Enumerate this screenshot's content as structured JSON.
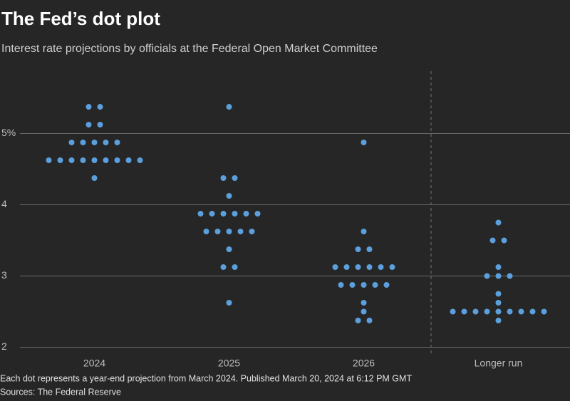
{
  "chart_data": {
    "type": "dot",
    "title": "The Fed’s dot plot",
    "subtitle": "Interest rate projections by officials at the Federal Open Market Committee",
    "note": "Each dot represents a year-end projection from March 2024. Published March 20, 2024 at 6:12 PM GMT",
    "source": "Sources: The Federal Reserve",
    "categories": [
      "2024",
      "2025",
      "2026",
      "Longer run"
    ],
    "values": [
      [
        5.375,
        5.375,
        5.125,
        5.125,
        4.875,
        4.875,
        4.875,
        4.875,
        4.875,
        4.625,
        4.625,
        4.625,
        4.625,
        4.625,
        4.625,
        4.625,
        4.625,
        4.625,
        4.375
      ],
      [
        5.375,
        4.375,
        4.375,
        4.125,
        3.875,
        3.875,
        3.875,
        3.875,
        3.875,
        3.875,
        3.625,
        3.625,
        3.625,
        3.625,
        3.625,
        3.375,
        3.125,
        3.125,
        2.625
      ],
      [
        4.875,
        3.625,
        3.375,
        3.375,
        3.125,
        3.125,
        3.125,
        3.125,
        3.125,
        3.125,
        2.875,
        2.875,
        2.875,
        2.875,
        2.875,
        2.625,
        2.5,
        2.375,
        2.375
      ],
      [
        3.75,
        3.5,
        3.5,
        3.125,
        3.0,
        3.0,
        3.0,
        2.75,
        2.625,
        2.5,
        2.5,
        2.5,
        2.5,
        2.5,
        2.5,
        2.5,
        2.5,
        2.5,
        2.375
      ]
    ],
    "color": "#5b9fdc",
    "ylim": [
      1.875,
      5.875
    ],
    "yticks": [
      2,
      3,
      4,
      {
        "value": 5,
        "label": "5%"
      }
    ],
    "grid": true
  }
}
